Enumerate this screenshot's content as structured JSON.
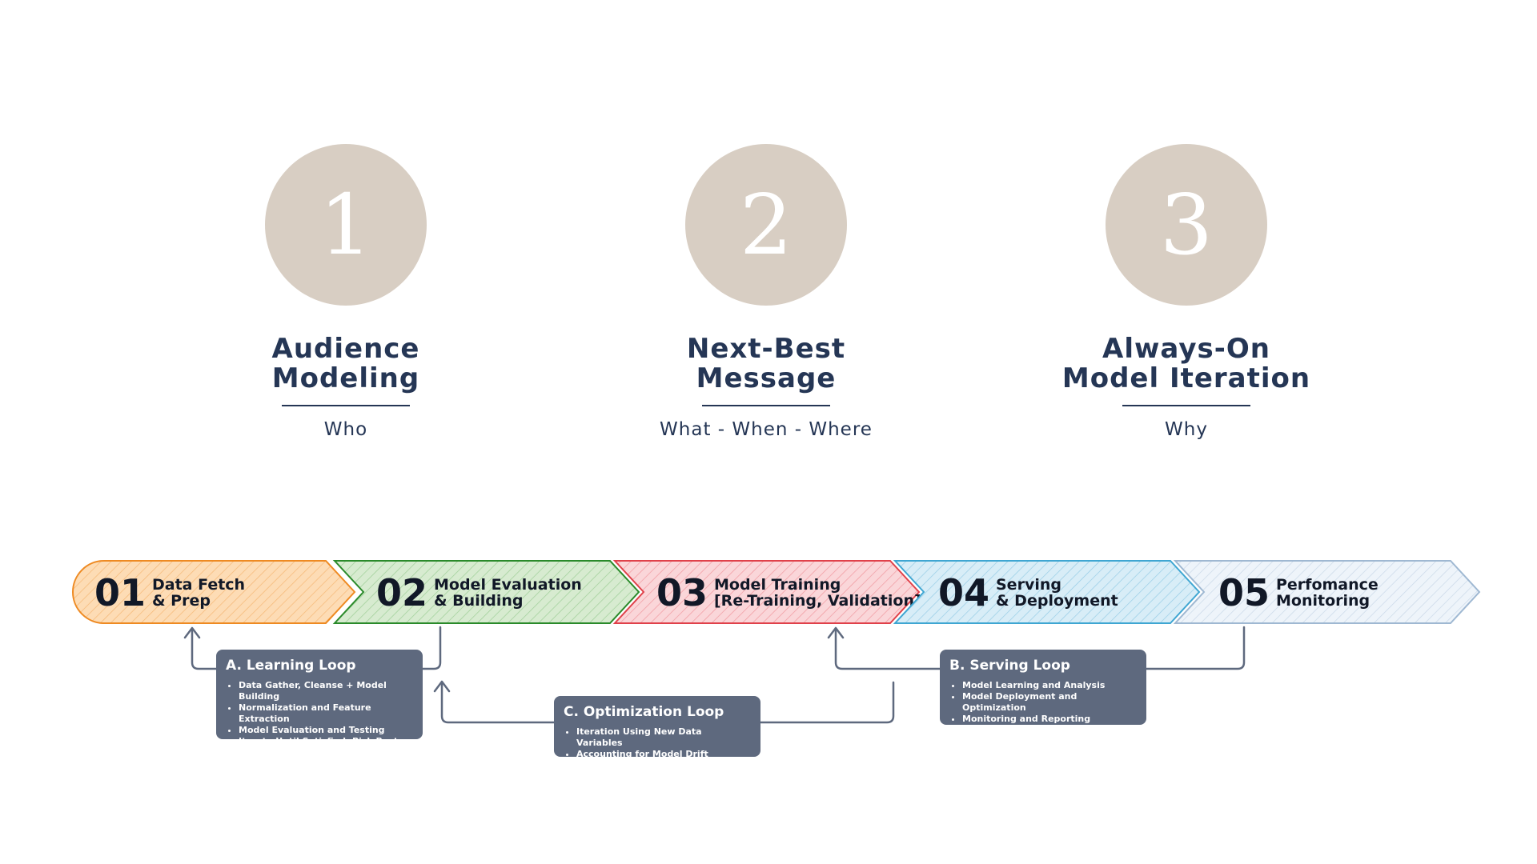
{
  "pillars": [
    {
      "number": "1",
      "title_line1": "Audience",
      "title_line2": "Modeling",
      "subtitle": "Who"
    },
    {
      "number": "2",
      "title_line1": "Next-Best",
      "title_line2": "Message",
      "subtitle": "What - When - Where"
    },
    {
      "number": "3",
      "title_line1": "Always-On",
      "title_line2": "Model Iteration",
      "subtitle": "Why"
    }
  ],
  "steps": [
    {
      "num": "01",
      "line1": "Data Fetch",
      "line2": "& Prep",
      "fill": "#fddcb5",
      "stroke": "#ee8a22",
      "hatch": "#f5b775"
    },
    {
      "num": "02",
      "line1": "Model Evaluation",
      "line2": "& Building",
      "fill": "#d7ebd0",
      "stroke": "#2a8a2a",
      "hatch": "#9fcf98"
    },
    {
      "num": "03",
      "line1": "Model Training",
      "line2": "[Re-Training, Validation]",
      "fill": "#fad6d9",
      "stroke": "#e0414a",
      "hatch": "#f0999f"
    },
    {
      "num": "04",
      "line1": "Serving",
      "line2": "& Deployment",
      "fill": "#d8edf7",
      "stroke": "#3fa6d2",
      "hatch": "#97cde6"
    },
    {
      "num": "05",
      "line1": "Perfomance",
      "line2": "Monitoring",
      "fill": "#eef4fa",
      "stroke": "#9fb8d2",
      "hatch": "#c9d8e8"
    }
  ],
  "loops": {
    "learning": {
      "title": "A. Learning Loop",
      "items": [
        "Data Gather, Cleanse + Model Building",
        "Normalization and Feature Extraction",
        "Model Evaluation and Testing",
        "Iterate Until Satisfied, Pick Best Model"
      ]
    },
    "optimization": {
      "title": "C. Optimization Loop",
      "items": [
        "Iteration Using New Data Variables",
        "Accounting for Model Drift"
      ]
    },
    "serving": {
      "title": "B. Serving Loop",
      "items": [
        "Model Learning and Analysis",
        "Model Deployment and Optimization",
        "Monitoring and Reporting"
      ]
    }
  },
  "colors": {
    "navy": "#253655",
    "circle": "#d8cec3",
    "loop_box": "#5e697e",
    "connector": "#5e697e"
  }
}
